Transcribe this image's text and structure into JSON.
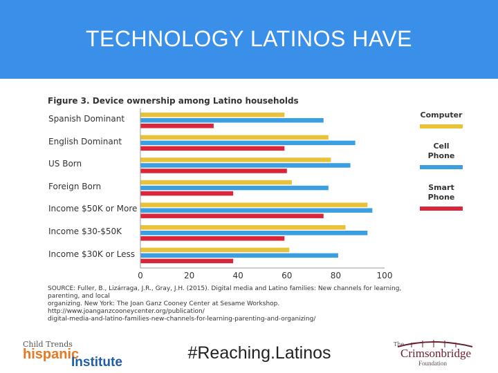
{
  "slide": {
    "title": "TECHNOLOGY LATINOS HAVE",
    "hashtag": "#Reaching.Latinos",
    "source_lines": [
      "SOURCE: Fuller, B., Lizárraga, J.R., Gray, J.H. (2015). Digital media and Latino families: New channels for learning, parenting, and local",
      "organizing. New York: The Joan Ganz Cooney Center at Sesame Workshop. http://www.joanganzcooneycenter.org/publication/",
      "digital-media-and-latino-families-new-channels-for-learning-parenting-and-organizing/"
    ]
  },
  "logos": {
    "left": {
      "top": "Child Trends",
      "hispanic": "hispanic",
      "institute": "Institute"
    },
    "right": {
      "the": "The",
      "name": "Crimsonbridge",
      "foundation": "Foundation"
    }
  },
  "colors": {
    "header": "#3a8fe8",
    "computer": "#e8c33a",
    "cell": "#3a9ee0",
    "smart": "#d9263a"
  },
  "chart_data": {
    "type": "bar",
    "orientation": "horizontal",
    "title": "Figure 3. Device ownership among Latino households",
    "categories": [
      "Spanish Dominant",
      "English Dominant",
      "US Born",
      "Foreign Born",
      "Income $50K or More",
      "Income $30-$50K",
      "Income $30K or Less"
    ],
    "series": [
      {
        "name": "Computer",
        "values": [
          59,
          77,
          78,
          62,
          93,
          84,
          61
        ]
      },
      {
        "name": "Cell Phone",
        "values": [
          75,
          88,
          86,
          77,
          95,
          93,
          81
        ]
      },
      {
        "name": "Smart Phone",
        "values": [
          30,
          59,
          60,
          38,
          75,
          59,
          38
        ]
      }
    ],
    "x_ticks": [
      "0",
      "20",
      "40",
      "60",
      "80",
      "100"
    ],
    "xlim": [
      0,
      100
    ],
    "legend": [
      {
        "label_lines": [
          "Computer"
        ]
      },
      {
        "label_lines": [
          "Cell",
          "Phone"
        ]
      },
      {
        "label_lines": [
          "Smart",
          "Phone"
        ]
      }
    ],
    "legend_placement": "right",
    "grid": false
  }
}
